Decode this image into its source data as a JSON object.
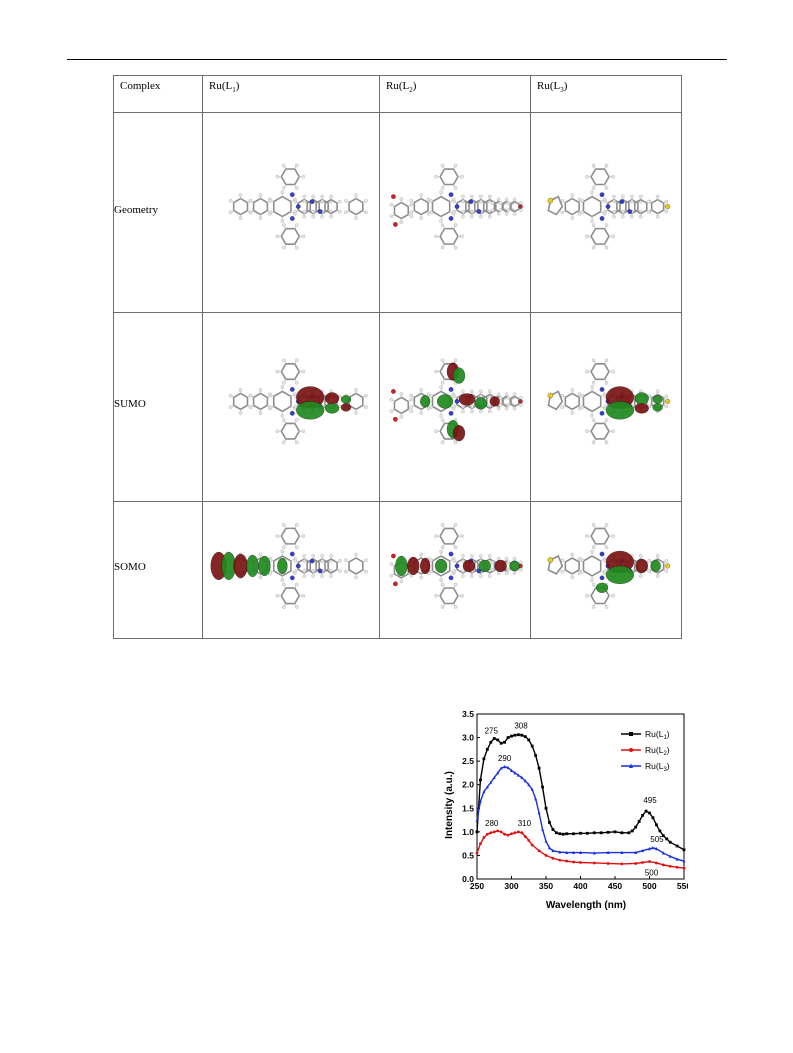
{
  "table": {
    "header": {
      "complex": "Complex",
      "cols": [
        {
          "prefix": "Ru(L",
          "sub": "1",
          "suffix": ")"
        },
        {
          "prefix": "Ru(L",
          "sub": "2",
          "suffix": ")"
        },
        {
          "prefix": "Ru(L",
          "sub": "3",
          "suffix": ")"
        }
      ]
    },
    "rows": [
      "Geometry",
      "SUMO",
      "SOMO"
    ]
  },
  "colors": {
    "carbon": "#8c8c8c",
    "hydrogen": "#e6e6e6",
    "nitrogen": "#2f3fd8",
    "oxygen": "#cc2222",
    "sulfur": "#e8cc20",
    "orbital_positive": "#1f8a1f",
    "orbital_negative": "#7a1414"
  },
  "chart_data": {
    "type": "line",
    "xlabel": "Wavelength (nm)",
    "ylabel": "Intensity (a.u.)",
    "xlim": [
      250,
      550
    ],
    "ylim": [
      0,
      3.5
    ],
    "xticks": [
      "250",
      "300",
      "350",
      "400",
      "450",
      "500",
      "550"
    ],
    "yticks": [
      "0.0",
      "0.5",
      "1.0",
      "1.5",
      "2.0",
      "2.5",
      "3.0",
      "3.5"
    ],
    "legend_position": "top-right",
    "series": [
      {
        "name_prefix": "Ru(L",
        "name_sub": "1",
        "name_suffix": ")",
        "color": "#000000",
        "marker": "square",
        "x": [
          250,
          255,
          260,
          265,
          270,
          275,
          280,
          285,
          290,
          295,
          300,
          305,
          310,
          315,
          320,
          325,
          330,
          335,
          340,
          345,
          350,
          355,
          360,
          365,
          370,
          375,
          380,
          390,
          400,
          410,
          420,
          430,
          440,
          450,
          460,
          470,
          475,
          480,
          485,
          490,
          495,
          500,
          505,
          510,
          515,
          520,
          525,
          530,
          540,
          550
        ],
        "y": [
          1.0,
          2.1,
          2.55,
          2.75,
          2.9,
          2.98,
          2.95,
          2.88,
          2.9,
          3.0,
          3.03,
          3.05,
          3.06,
          3.05,
          3.02,
          2.95,
          2.82,
          2.62,
          2.35,
          1.95,
          1.5,
          1.2,
          1.05,
          0.98,
          0.96,
          0.95,
          0.96,
          0.96,
          0.97,
          0.97,
          0.98,
          0.98,
          0.99,
          1.0,
          0.98,
          0.98,
          1.02,
          1.1,
          1.22,
          1.35,
          1.44,
          1.4,
          1.3,
          1.15,
          1.02,
          0.92,
          0.85,
          0.78,
          0.7,
          0.62
        ]
      },
      {
        "name_prefix": "Ru(L",
        "name_sub": "2",
        "name_suffix": ")",
        "color": "#e01010",
        "marker": "circle",
        "x": [
          250,
          255,
          260,
          265,
          270,
          275,
          280,
          285,
          290,
          295,
          300,
          305,
          310,
          315,
          320,
          325,
          330,
          340,
          350,
          360,
          370,
          380,
          390,
          400,
          420,
          440,
          460,
          480,
          490,
          500,
          510,
          520,
          530,
          540,
          550
        ],
        "y": [
          0.55,
          0.75,
          0.88,
          0.95,
          0.98,
          1.0,
          1.02,
          1.0,
          0.95,
          0.93,
          0.96,
          0.98,
          1.0,
          0.98,
          0.9,
          0.82,
          0.72,
          0.6,
          0.5,
          0.44,
          0.4,
          0.38,
          0.36,
          0.35,
          0.34,
          0.33,
          0.32,
          0.33,
          0.35,
          0.37,
          0.34,
          0.3,
          0.27,
          0.25,
          0.23
        ]
      },
      {
        "name_prefix": "Ru(L",
        "name_sub": "3",
        "name_suffix": ")",
        "color": "#1530e0",
        "marker": "triangle",
        "x": [
          250,
          255,
          260,
          265,
          270,
          275,
          280,
          285,
          290,
          295,
          300,
          305,
          310,
          315,
          320,
          325,
          330,
          335,
          340,
          345,
          350,
          355,
          360,
          370,
          380,
          390,
          400,
          420,
          440,
          460,
          480,
          490,
          500,
          505,
          510,
          520,
          530,
          540,
          550
        ],
        "y": [
          1.25,
          1.65,
          1.85,
          1.95,
          2.05,
          2.15,
          2.25,
          2.35,
          2.38,
          2.36,
          2.3,
          2.25,
          2.2,
          2.15,
          2.08,
          2.0,
          1.9,
          1.7,
          1.4,
          1.05,
          0.8,
          0.66,
          0.6,
          0.57,
          0.56,
          0.56,
          0.56,
          0.55,
          0.56,
          0.56,
          0.56,
          0.6,
          0.64,
          0.66,
          0.64,
          0.55,
          0.48,
          0.42,
          0.38
        ]
      }
    ],
    "annotations": [
      {
        "text": "275",
        "x": 275,
        "y": 2.98
      },
      {
        "text": "308",
        "x": 308,
        "y": 3.06
      },
      {
        "text": "290",
        "x": 290,
        "y": 2.38
      },
      {
        "text": "280",
        "x": 280,
        "y": 1.02
      },
      {
        "text": "310",
        "x": 310,
        "y": 1.0
      },
      {
        "text": "495",
        "x": 495,
        "y": 1.44
      },
      {
        "text": "505",
        "x": 505,
        "y": 0.66
      },
      {
        "text": "500",
        "x": 500,
        "y": 0.37
      }
    ]
  }
}
